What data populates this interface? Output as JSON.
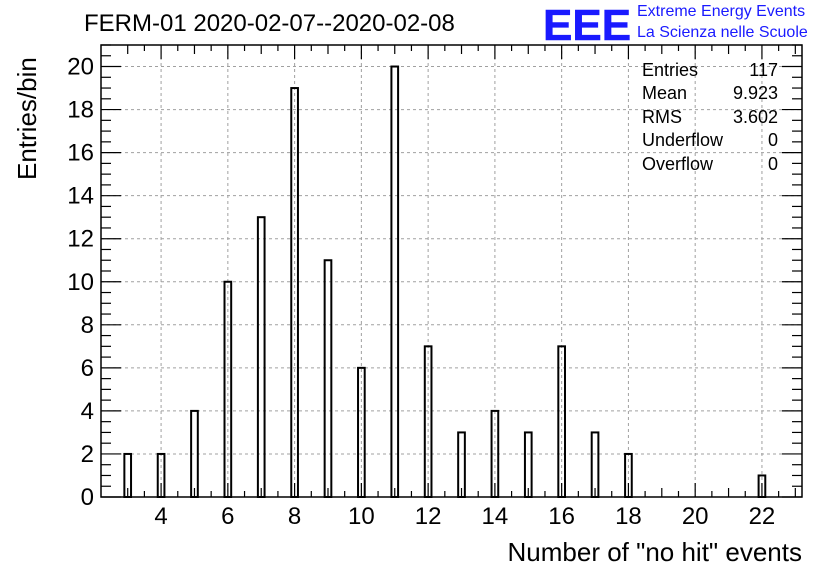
{
  "title": "FERM-01 2020-02-07--2020-02-08",
  "logo": {
    "mark": "EEE",
    "line1": "Extreme Energy Events",
    "line2": "La Scienza nelle Scuole",
    "color": "#1a1aff"
  },
  "stats": [
    {
      "label": "Entries",
      "value": "117"
    },
    {
      "label": "Mean",
      "value": "9.923"
    },
    {
      "label": "RMS",
      "value": "3.602"
    },
    {
      "label": "Underflow",
      "value": "0"
    },
    {
      "label": "Overflow",
      "value": "0"
    }
  ],
  "chart_data": {
    "type": "bar",
    "title": "FERM-01 2020-02-07--2020-02-08",
    "xlabel": "Number of \"no hit\" events",
    "ylabel": "Entries/bin",
    "xlim": [
      2.2,
      23.2
    ],
    "ylim": [
      0,
      21
    ],
    "x_ticks": [
      4,
      6,
      8,
      10,
      12,
      14,
      16,
      18,
      20,
      22
    ],
    "y_ticks": [
      0,
      2,
      4,
      6,
      8,
      10,
      12,
      14,
      16,
      18,
      20
    ],
    "grid": true,
    "bar_width": 0.2,
    "x": [
      3,
      4,
      5,
      6,
      7,
      8,
      9,
      10,
      11,
      12,
      13,
      14,
      15,
      16,
      17,
      18,
      22
    ],
    "values": [
      2,
      2,
      4,
      10,
      13,
      19,
      11,
      6,
      20,
      7,
      3,
      4,
      3,
      7,
      3,
      2,
      1
    ],
    "bar_color": "#000000"
  }
}
